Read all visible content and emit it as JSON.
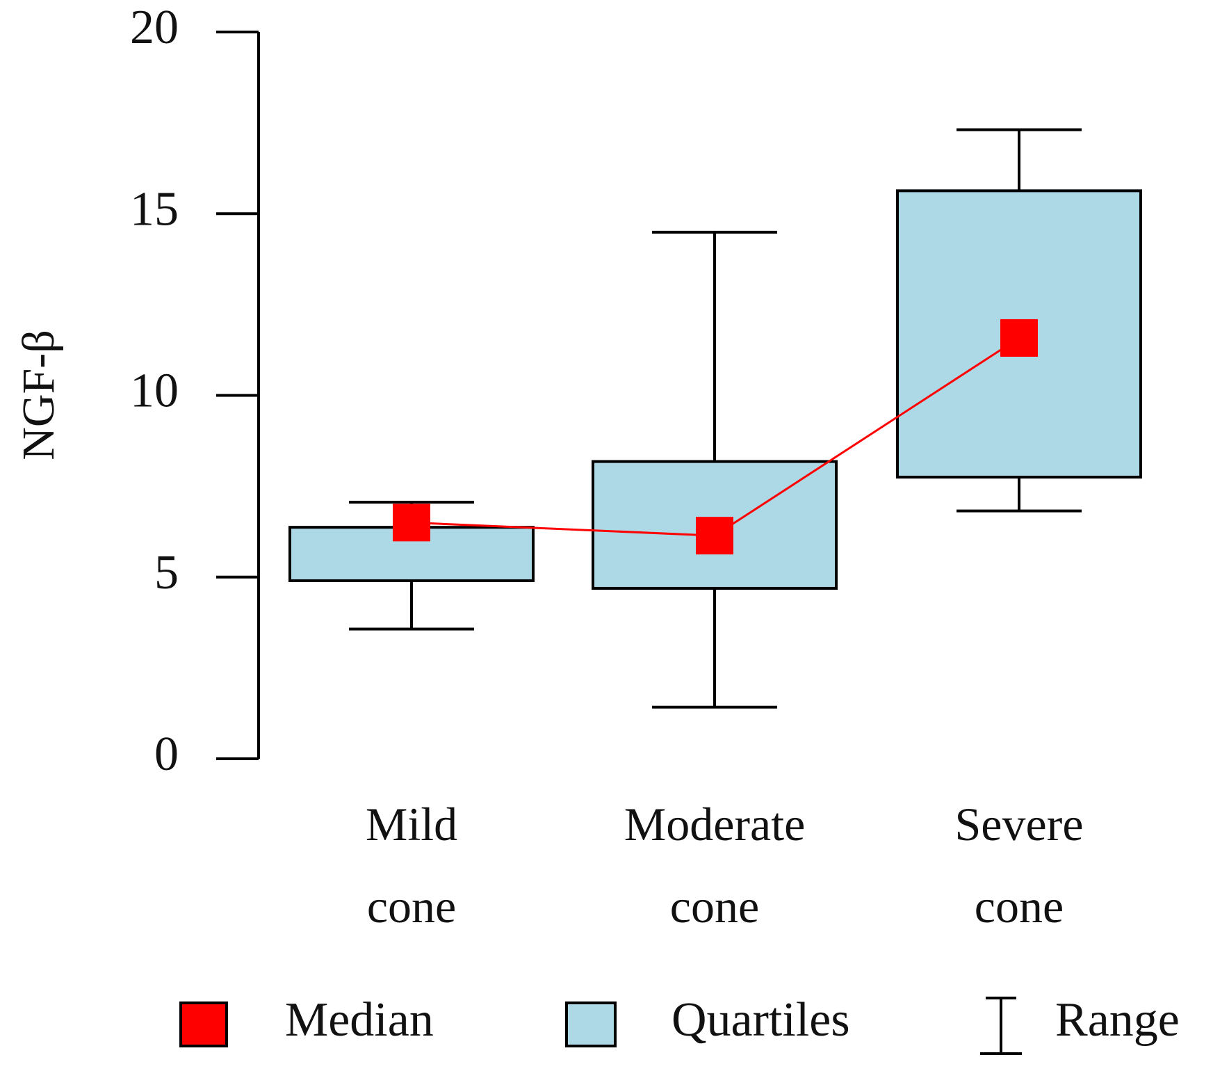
{
  "chart_data": {
    "type": "box",
    "y_label": "NGF-β",
    "categories": [
      "Mild cone",
      "Moderate cone",
      "Severe cone"
    ],
    "min": [
      3.57,
      1.42,
      6.82
    ],
    "q1": [
      4.9,
      4.69,
      7.75
    ],
    "median": [
      6.5,
      6.14,
      11.58
    ],
    "q3": [
      6.37,
      8.18,
      15.63
    ],
    "max": [
      7.06,
      14.49,
      17.31
    ],
    "ylim": [
      0,
      20
    ],
    "yticks": [
      0,
      5,
      10,
      15,
      20
    ],
    "median_color": "#ff0000",
    "box_color": "#add8e6",
    "range_color": "#000000",
    "legend": [
      "Median",
      "Quartiles",
      "Range"
    ]
  }
}
